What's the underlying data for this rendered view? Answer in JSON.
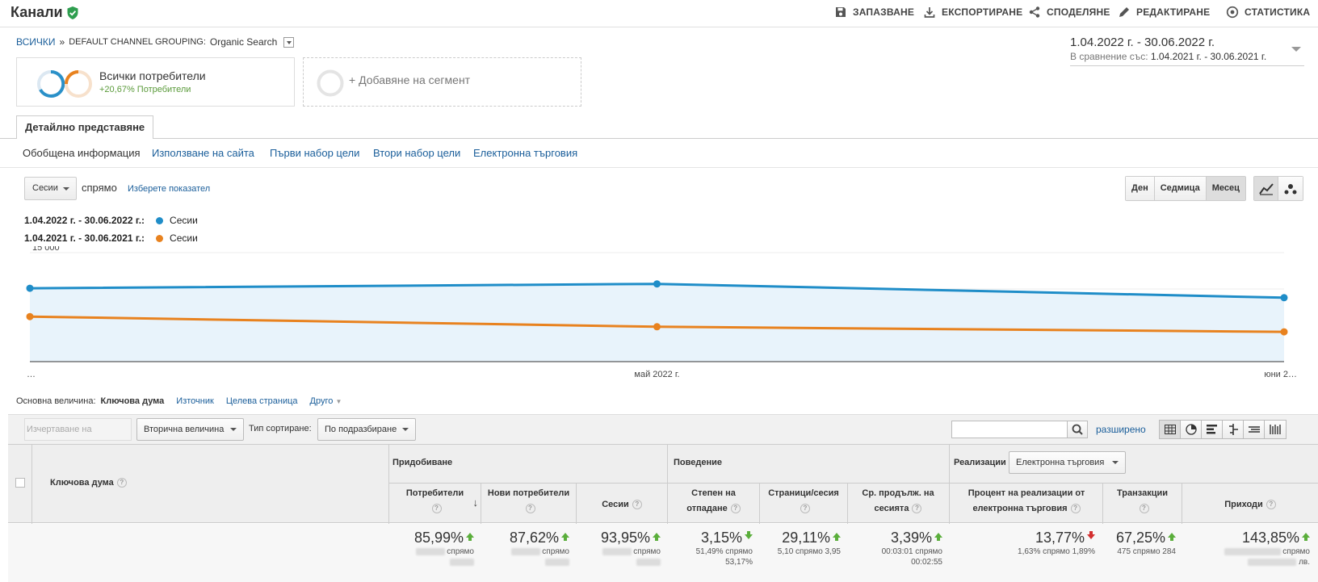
{
  "header": {
    "title": "Канали",
    "actions": [
      {
        "label": "ЗАПАЗВАНЕ",
        "icon": "save-icon"
      },
      {
        "label": "ЕКСПОРТИРАНЕ",
        "icon": "download-icon"
      },
      {
        "label": "СПОДЕЛЯНЕ",
        "icon": "share-icon"
      },
      {
        "label": "РЕДАКТИРАНЕ",
        "icon": "pencil-icon"
      },
      {
        "label": "СТАТИСТИКА",
        "icon": "insights-icon"
      }
    ]
  },
  "breadcrumb": {
    "root": "ВСИЧКИ",
    "separator": "»",
    "grouping_label": "DEFAULT CHANNEL GROUPING:",
    "grouping_value": "Organic Search"
  },
  "daterange": {
    "main": "1.04.2022 г. - 30.06.2022 г.",
    "compare_label": "В сравнение със:",
    "compare_value": "1.04.2021 г. - 30.06.2021 г."
  },
  "segments": {
    "all_users": "Всички потребители",
    "all_users_delta": "+20,67% Потребители",
    "add_segment": "+ Добавяне на сегмент"
  },
  "tabs": {
    "detail": "Детайлно представяне",
    "subtabs": [
      "Обобщена информация",
      "Използване на сайта",
      "Първи набор цели",
      "Втори набор цели",
      "Електронна търговия"
    ]
  },
  "chart_controls": {
    "metric": "Сесии",
    "vs": "спрямо",
    "pick_metric": "Изберете показател",
    "granularity": [
      "Ден",
      "Седмица",
      "Месец"
    ],
    "active_granularity": "Месец"
  },
  "legend": [
    {
      "range": "1.04.2022 г. - 30.06.2022 г.:",
      "metric": "Сесии",
      "color": "#1f8dc8"
    },
    {
      "range": "1.04.2021 г. - 30.06.2021 г.:",
      "metric": "Сесии",
      "color": "#e8821f"
    }
  ],
  "chart_data": {
    "type": "line",
    "x": [
      "…",
      "май 2022 г.",
      "юни 2…"
    ],
    "ytick_visible": "15 000",
    "ylim": [
      0,
      15000
    ],
    "series": [
      {
        "name": "1.04.2022 г. - 30.06.2022 г.",
        "color": "#1f8dc8",
        "values": [
          10100,
          10700,
          8800
        ]
      },
      {
        "name": "1.04.2021 г. - 30.06.2021 г.",
        "color": "#e8821f",
        "values": [
          6200,
          4800,
          4100
        ]
      }
    ],
    "grid": true
  },
  "primary_dimension": {
    "label": "Основна величина:",
    "current": "Ключова дума",
    "others": [
      "Източник",
      "Целева страница",
      "Друго"
    ]
  },
  "table_controls": {
    "plot_rows": "Изчертаване на редовете",
    "secondary": "Вторична величина",
    "sort_label": "Тип сортиране:",
    "sort_value": "По подразбиране",
    "advanced": "разширено"
  },
  "table": {
    "dim_header": "Ключова дума",
    "groups": {
      "acquisition": "Придобиване",
      "behavior": "Поведение",
      "conversions": "Реализации",
      "conversions_select": "Електронна търговия"
    },
    "columns": [
      {
        "label": "Потребители",
        "value": "85,99%",
        "sub1": "спрямо",
        "sub2": "",
        "dir": "up"
      },
      {
        "label": "Нови потребители",
        "value": "87,62%",
        "sub1": "спрямо",
        "sub2": "",
        "dir": "up"
      },
      {
        "label": "Сесии",
        "value": "93,95%",
        "sub1": "спрямо",
        "sub2": "",
        "dir": "up"
      },
      {
        "label": "Степен на отпадане",
        "value": "3,15%",
        "sub1": "51,49% спрямо",
        "sub2": "53,17%",
        "dir": "down-good"
      },
      {
        "label": "Страници/сесия",
        "value": "29,11%",
        "sub1": "5,10 спрямо 3,95",
        "sub2": "",
        "dir": "up"
      },
      {
        "label": "Ср. продълж. на сесията",
        "value": "3,39%",
        "sub1": "00:03:01 спрямо",
        "sub2": "00:02:55",
        "dir": "up"
      },
      {
        "label": "Процент на реализации от електронна търговия",
        "value": "13,77%",
        "sub1": "1,63% спрямо 1,89%",
        "sub2": "",
        "dir": "down-bad"
      },
      {
        "label": "Транзакции",
        "value": "67,25%",
        "sub1": "475 спрямо 284",
        "sub2": "",
        "dir": "up"
      },
      {
        "label": "Приходи",
        "value": "143,85%",
        "sub1": "спрямо",
        "sub2": "лв.",
        "dir": "up"
      }
    ]
  }
}
